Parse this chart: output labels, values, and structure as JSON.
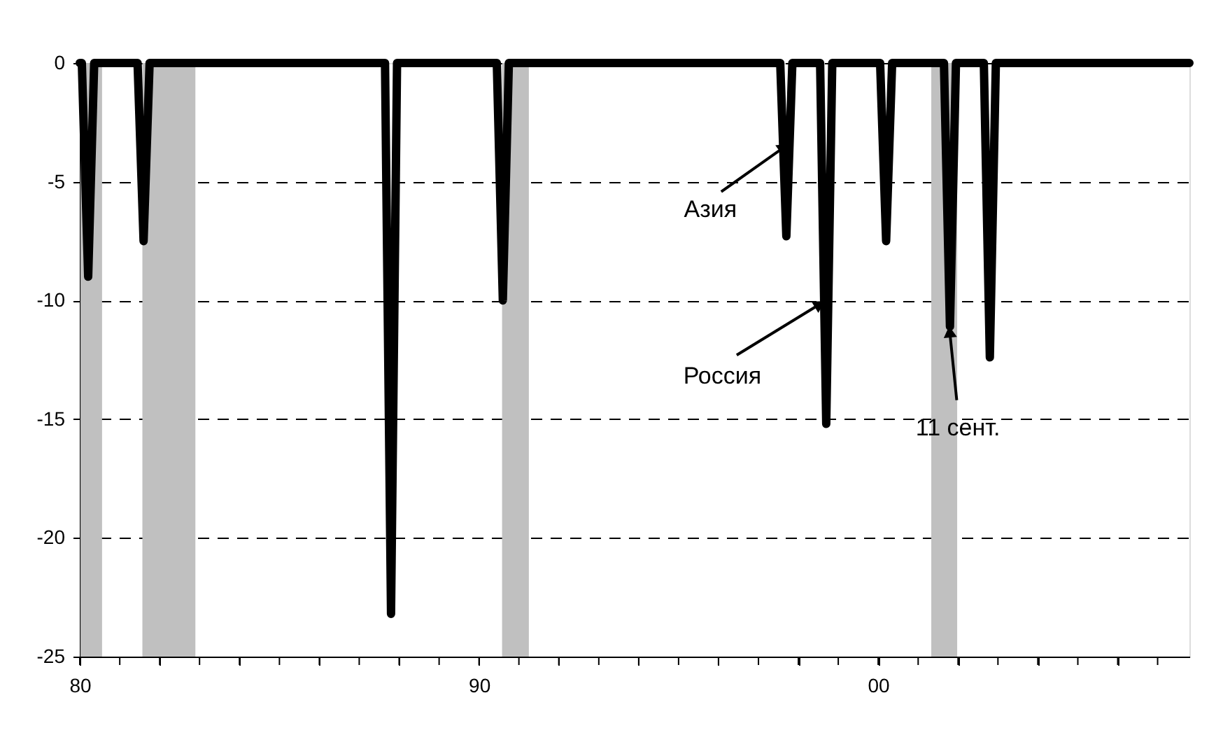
{
  "chart_data": {
    "type": "line",
    "x": [
      "1980-01-01",
      "1980-01-20",
      "1980-03-18",
      "1980-05-12",
      "1981-06-13",
      "1981-08-07",
      "1981-10-01",
      "1987-08-25",
      "1987-10-19",
      "1987-12-13",
      "1990-06-13",
      "1990-08-07",
      "1990-10-01",
      "1997-07-19",
      "1997-09-13",
      "1997-11-07",
      "1998-07-19",
      "1998-09-13",
      "1998-11-07",
      "2000-01-19",
      "2000-03-14",
      "2000-05-08",
      "2001-08-25",
      "2001-10-19",
      "2001-12-13",
      "2002-08-25",
      "2002-10-19",
      "2002-12-13",
      "2007-10-19"
    ],
    "series": [
      {
        "color": "#000000",
        "values": [
          0,
          0,
          -9,
          0,
          0,
          -7.5,
          0,
          0,
          -23.2,
          0,
          0,
          -10,
          0,
          0,
          -7.3,
          0,
          0,
          -15.2,
          0,
          0,
          -7.5,
          0,
          0,
          -11.1,
          0,
          0,
          -12.4,
          0,
          0
        ]
      }
    ],
    "xlim": [
      "1980-01-01",
      "2007-10-19"
    ],
    "xticks": [
      {
        "value": "1980",
        "label": "80"
      },
      {
        "value": "1981",
        "label": null
      },
      {
        "value": "1982",
        "label": null
      },
      {
        "value": "1983",
        "label": null
      },
      {
        "value": "1984",
        "label": null
      },
      {
        "value": "1985",
        "label": null
      },
      {
        "value": "1986",
        "label": null
      },
      {
        "value": "1987",
        "label": null
      },
      {
        "value": "1988",
        "label": null
      },
      {
        "value": "1989",
        "label": null
      },
      {
        "value": "1990",
        "label": "90"
      },
      {
        "value": "1991",
        "label": null
      },
      {
        "value": "1992",
        "label": null
      },
      {
        "value": "1993",
        "label": null
      },
      {
        "value": "1994",
        "label": null
      },
      {
        "value": "1995",
        "label": null
      },
      {
        "value": "1996",
        "label": null
      },
      {
        "value": "1997",
        "label": null
      },
      {
        "value": "1998",
        "label": null
      },
      {
        "value": "1999",
        "label": null
      },
      {
        "value": "2000",
        "label": "00"
      },
      {
        "value": "2001",
        "label": null
      },
      {
        "value": "2002",
        "label": null
      },
      {
        "value": "2003",
        "label": null
      },
      {
        "value": "2004",
        "label": null
      },
      {
        "value": "2005",
        "label": null
      },
      {
        "value": "2006",
        "label": null
      },
      {
        "value": "2007",
        "label": null
      }
    ],
    "ylim": [
      -25,
      0
    ],
    "yticks": [
      -25,
      -20,
      -15,
      -10,
      -5,
      0
    ],
    "grid": "y",
    "marker": "none",
    "line_style": "solid",
    "bands": [
      {
        "axis": "x",
        "from": "1980-01-08",
        "to": "1980-07-23",
        "color": "#c0c0c0"
      },
      {
        "axis": "x",
        "from": "1981-07-27",
        "to": "1982-11-24",
        "color": "#c0c0c0"
      },
      {
        "axis": "x",
        "from": "1990-07-31",
        "to": "1991-04-02",
        "color": "#c0c0c0"
      },
      {
        "axis": "x",
        "from": "2001-05-01",
        "to": "2001-12-24",
        "color": "#c0c0c0"
      }
    ],
    "annotations": [
      {
        "text": "Азия",
        "x": "1997-08-07",
        "y": -3.6
      },
      {
        "text": "Россия",
        "x": "1998-07-01",
        "y": -10.2
      },
      {
        "text": "11 сент.",
        "x": "2001-10-19",
        "y": -11.4
      }
    ]
  }
}
